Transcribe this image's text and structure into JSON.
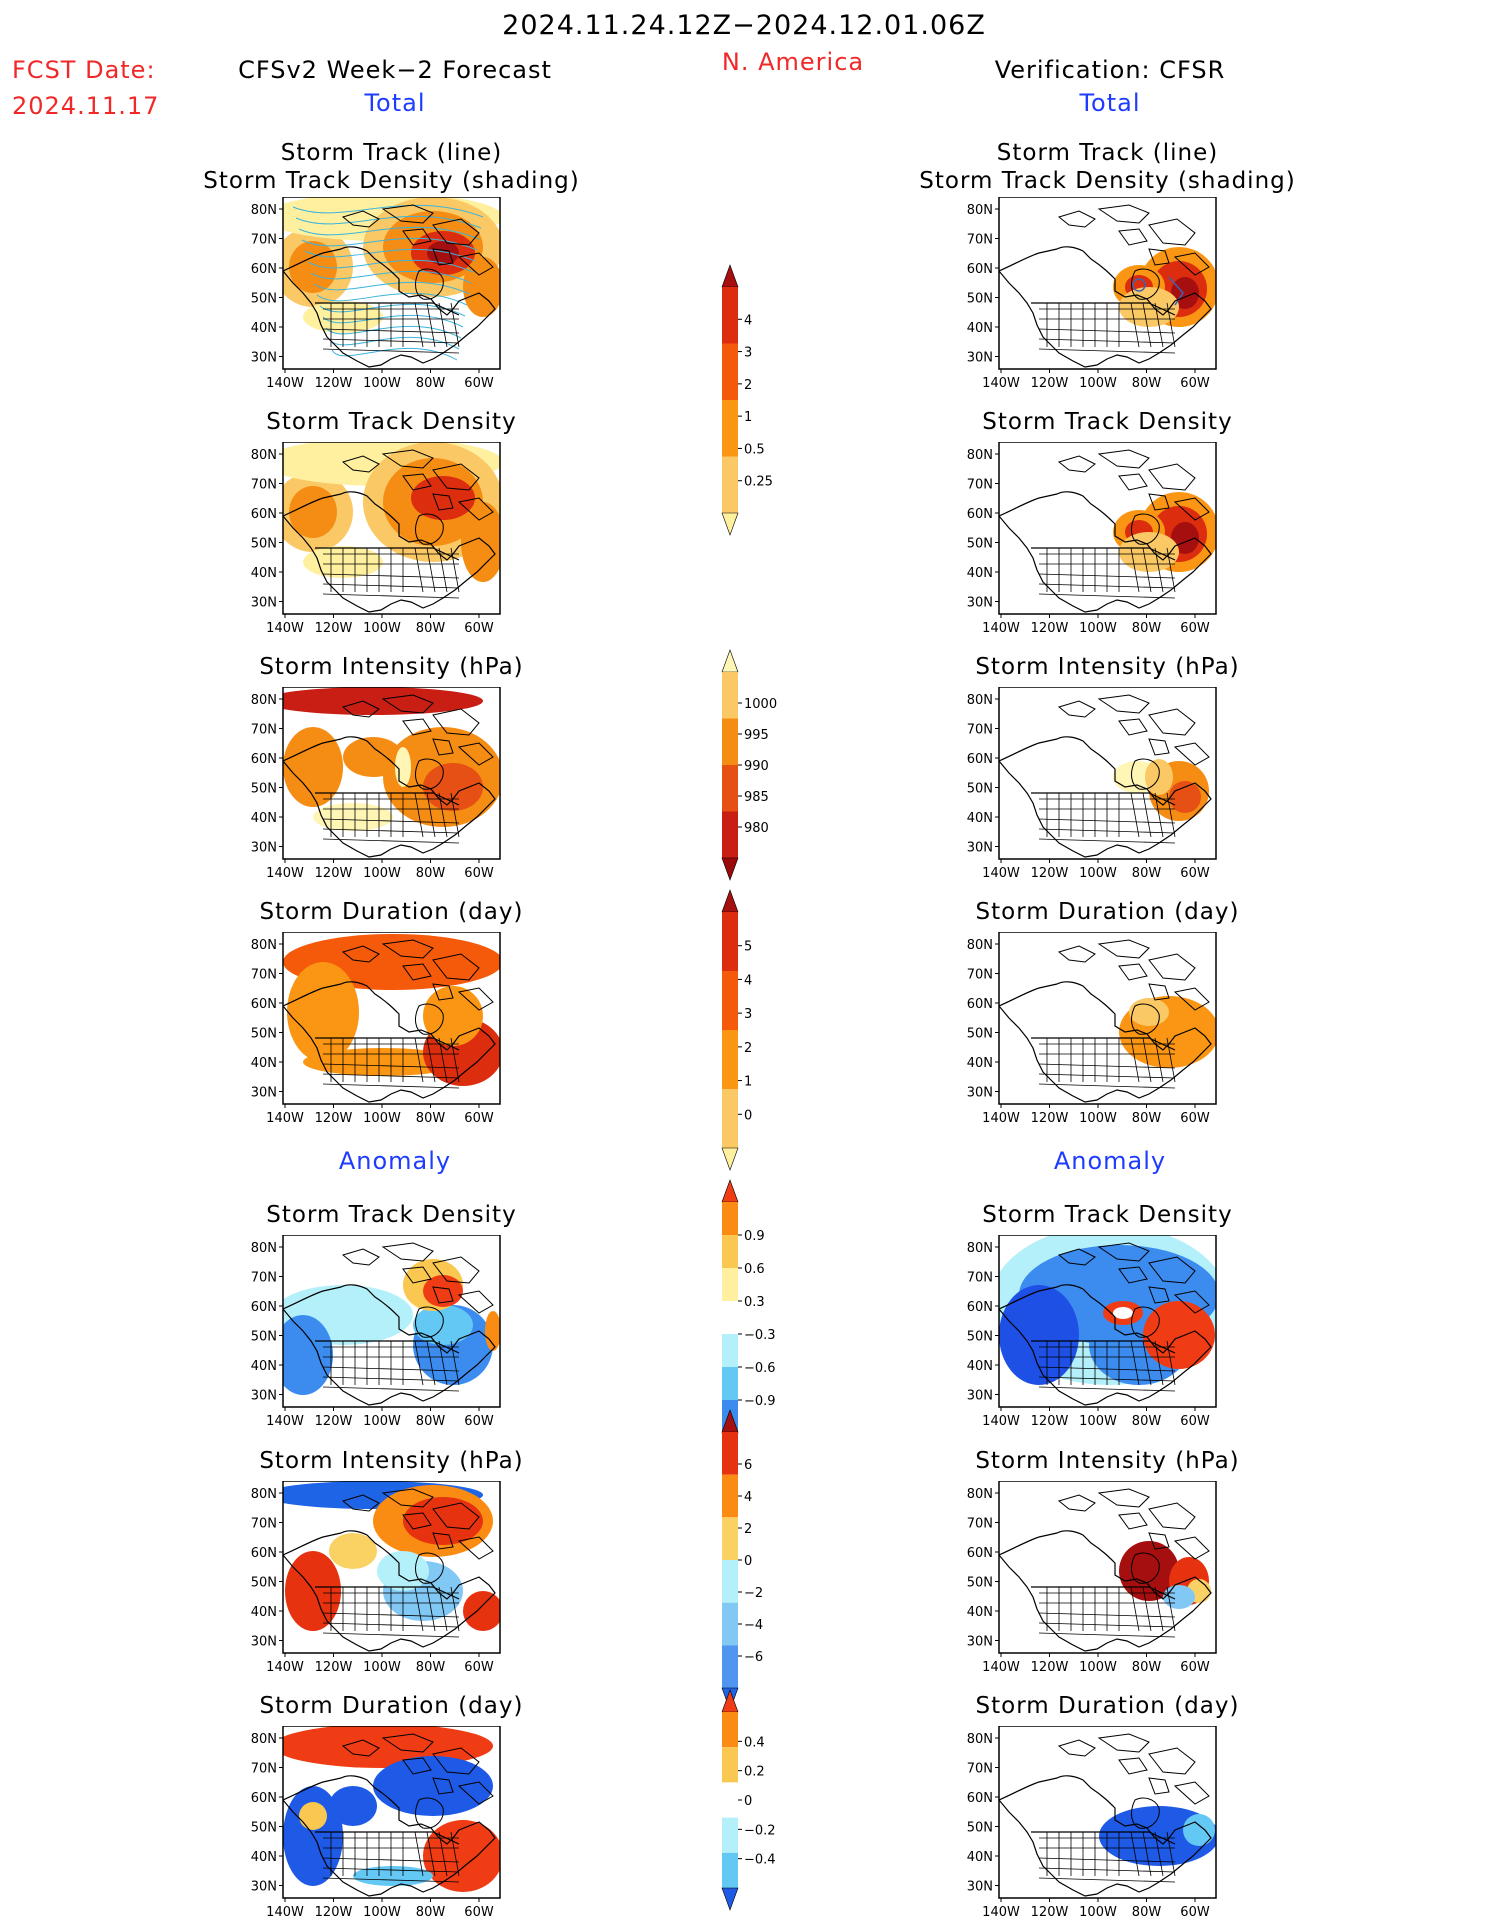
{
  "header": {
    "period": "2024.11.24.12Z−2024.12.01.06Z",
    "fcst_label": "FCST Date:",
    "fcst_date": "2024.11.17",
    "region": "N. America",
    "left_title": "CFSv2 Week−2 Forecast",
    "right_title": "Verification: CFSR"
  },
  "sections": {
    "total": "Total",
    "anomaly": "Anomaly"
  },
  "axes": {
    "lat_ticks": [
      "80N",
      "70N",
      "60N",
      "50N",
      "40N",
      "30N"
    ],
    "lon_ticks": [
      "140W",
      "120W",
      "100W",
      "80W",
      "60W"
    ]
  },
  "panels": [
    {
      "id": "track-line",
      "title1": "Storm Track (line)",
      "title2": "Storm Track Density (shading)"
    },
    {
      "id": "track-density",
      "title1": "Storm Track Density"
    },
    {
      "id": "intensity",
      "title1": "Storm Intensity (hPa)"
    },
    {
      "id": "duration",
      "title1": "Storm Duration (day)"
    },
    {
      "id": "anom-density",
      "title1": "Storm Track Density"
    },
    {
      "id": "anom-intensity",
      "title1": "Storm Intensity (hPa)"
    },
    {
      "id": "anom-duration",
      "title1": "Storm Duration (day)"
    }
  ],
  "colorbars": {
    "density": {
      "labels": [
        "4",
        "3",
        "2",
        "1",
        "0.5",
        "0.25"
      ],
      "colors": [
        "#a50f0f",
        "#dc2d0f",
        "#f55a0a",
        "#fa9614",
        "#fac864",
        "#fff0a0"
      ]
    },
    "intensity": {
      "labels": [
        "1000",
        "995",
        "990",
        "985",
        "980"
      ],
      "colors": [
        "#fff5b4",
        "#fac864",
        "#f58c14",
        "#e65014",
        "#c81e14",
        "#9b0a0a"
      ]
    },
    "duration": {
      "labels": [
        "5",
        "4",
        "3",
        "2",
        "1",
        "0"
      ],
      "colors": [
        "#a50f0f",
        "#dc2d0f",
        "#f55a0a",
        "#fa9614",
        "#fac864",
        "#fff0a0"
      ]
    },
    "anom_density": {
      "labels": [
        "0.9",
        "0.6",
        "0.3",
        "−0.3",
        "−0.6",
        "−0.9"
      ],
      "colors": [
        "#f03c14",
        "#fa8c14",
        "#fac850",
        "#fff0a0",
        "#ffffff",
        "#b4f0fa",
        "#64c8f5",
        "#3c8cf0",
        "#1e50e6"
      ]
    },
    "anom_intensity": {
      "labels": [
        "6",
        "4",
        "2",
        "0",
        "−2",
        "−4",
        "−6"
      ],
      "colors": [
        "#a50f0f",
        "#e6320f",
        "#fa8c14",
        "#fad264",
        "#b4f0fa",
        "#82c8f5",
        "#5096f0",
        "#1e64e6"
      ]
    },
    "anom_duration": {
      "labels": [
        "0.4",
        "0.2",
        "0",
        "−0.2",
        "−0.4"
      ],
      "colors": [
        "#f03c14",
        "#fa8c14",
        "#fac850",
        "#ffffff",
        "#b4f0fa",
        "#64c8f5",
        "#1e5ae6"
      ]
    }
  }
}
